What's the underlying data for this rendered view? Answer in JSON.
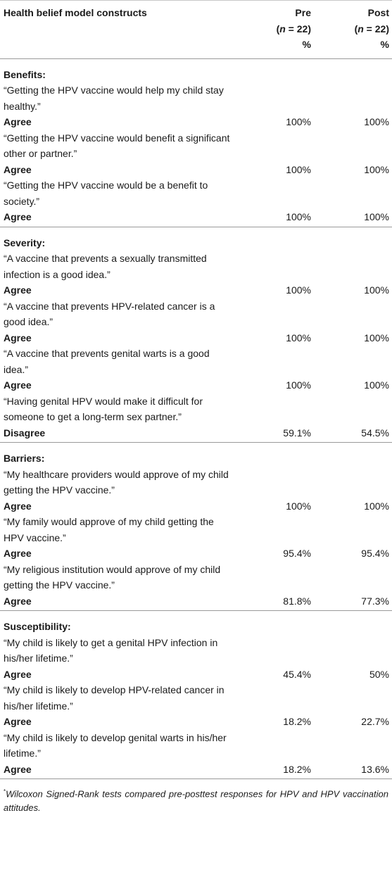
{
  "header": {
    "construct": "Health belief model constructs",
    "pre": {
      "label": "Pre",
      "n_open": "(",
      "n_var": "n",
      "n_rest": " = 22)",
      "unit": "%"
    },
    "post": {
      "label": "Post",
      "n_open": "(",
      "n_var": "n",
      "n_rest": " = 22)",
      "unit": "%"
    }
  },
  "sections": [
    {
      "title": "Benefits:",
      "items": [
        {
          "statement": "“Getting the HPV vaccine would help my child stay healthy.”",
          "response": "Agree",
          "pre": "100%",
          "post": "100%"
        },
        {
          "statement": "“Getting the HPV vaccine would benefit a significant other or partner.”",
          "response": "Agree",
          "pre": "100%",
          "post": "100%"
        },
        {
          "statement": "“Getting the HPV vaccine would be a benefit to society.”",
          "response": "Agree",
          "pre": "100%",
          "post": "100%"
        }
      ]
    },
    {
      "title": "Severity:",
      "items": [
        {
          "statement": "“A vaccine that prevents a sexually transmitted infection is a good idea.”",
          "response": "Agree",
          "pre": "100%",
          "post": "100%"
        },
        {
          "statement": "“A vaccine that prevents HPV-related cancer is a good idea.”",
          "response": "Agree",
          "pre": "100%",
          "post": "100%"
        },
        {
          "statement": "“A vaccine that prevents genital warts is a good idea.”",
          "response": "Agree",
          "pre": "100%",
          "post": "100%"
        },
        {
          "statement": "“Having genital HPV would make it difficult for someone to get a long-term sex partner.”",
          "response": "Disagree",
          "pre": "59.1%",
          "post": "54.5%"
        }
      ]
    },
    {
      "title": "Barriers:",
      "items": [
        {
          "statement": "“My healthcare providers would approve of my child getting the HPV vaccine.”",
          "response": "Agree",
          "pre": "100%",
          "post": "100%"
        },
        {
          "statement": "“My family would approve of my child getting the HPV vaccine.”",
          "response": "Agree",
          "pre": "95.4%",
          "post": "95.4%"
        },
        {
          "statement": "“My religious institution would approve of my child getting the HPV vaccine.”",
          "response": "Agree",
          "pre": "81.8%",
          "post": "77.3%"
        }
      ]
    },
    {
      "title": "Susceptibility:",
      "items": [
        {
          "statement": "“My child is likely to get a genital HPV infection in his/her lifetime.”",
          "response": "Agree",
          "pre": "45.4%",
          "post": "50%"
        },
        {
          "statement": "“My child is likely to develop HPV-related cancer in his/her lifetime.”",
          "response": "Agree",
          "pre": "18.2%",
          "post": "22.7%"
        },
        {
          "statement": "“My child is likely to develop genital warts in his/her lifetime.”",
          "response": "Agree",
          "pre": "18.2%",
          "post": "13.6%"
        }
      ]
    }
  ],
  "footnote": {
    "marker": "*",
    "text": "Wilcoxon Signed-Rank tests compared pre-posttest responses for HPV and HPV vaccination attitudes."
  }
}
